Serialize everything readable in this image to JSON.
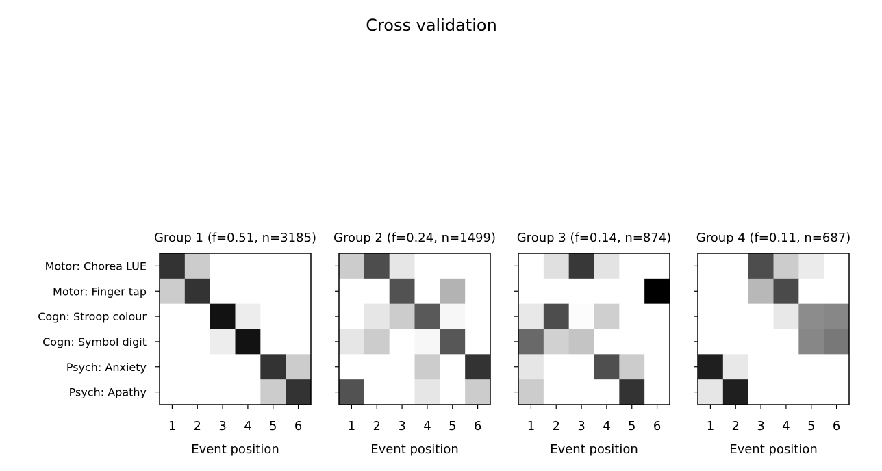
{
  "figure": {
    "title": "Cross validation"
  },
  "chart_data": {
    "type": "heatmap",
    "colormap": "greys",
    "value_range": [
      0,
      1
    ],
    "rows": [
      "Motor: Chorea LUE",
      "Motor: Finger tap",
      "Cogn: Stroop colour",
      "Cogn: Symbol digit",
      "Psych: Anxiety",
      "Psych: Apathy"
    ],
    "columns": [
      "1",
      "2",
      "3",
      "4",
      "5",
      "6"
    ],
    "xlabel": "Event position",
    "panels": [
      {
        "title": "Group 1 (f=0.51, n=3185)",
        "matrix": [
          [
            0.8,
            0.2,
            0.0,
            0.0,
            0.0,
            0.0
          ],
          [
            0.2,
            0.8,
            0.0,
            0.0,
            0.0,
            0.0
          ],
          [
            0.0,
            0.0,
            0.93,
            0.07,
            0.0,
            0.0
          ],
          [
            0.0,
            0.0,
            0.07,
            0.93,
            0.0,
            0.0
          ],
          [
            0.0,
            0.0,
            0.0,
            0.0,
            0.8,
            0.2
          ],
          [
            0.0,
            0.0,
            0.0,
            0.0,
            0.2,
            0.8
          ]
        ]
      },
      {
        "title": "Group 2 (f=0.24, n=1499)",
        "matrix": [
          [
            0.2,
            0.7,
            0.1,
            0.0,
            0.0,
            0.0
          ],
          [
            0.0,
            0.0,
            0.68,
            0.0,
            0.3,
            0.0
          ],
          [
            0.0,
            0.1,
            0.2,
            0.65,
            0.03,
            0.0
          ],
          [
            0.1,
            0.2,
            0.0,
            0.03,
            0.66,
            0.0
          ],
          [
            0.0,
            0.0,
            0.0,
            0.2,
            0.0,
            0.8
          ],
          [
            0.68,
            0.0,
            0.0,
            0.1,
            0.0,
            0.2
          ]
        ]
      },
      {
        "title": "Group 3 (f=0.14, n=874)",
        "matrix": [
          [
            0.0,
            0.12,
            0.78,
            0.11,
            0.0,
            0.0
          ],
          [
            0.0,
            0.0,
            0.0,
            0.0,
            0.0,
            1.0
          ],
          [
            0.09,
            0.7,
            0.01,
            0.19,
            0.0,
            0.0
          ],
          [
            0.59,
            0.18,
            0.23,
            0.0,
            0.0,
            0.0
          ],
          [
            0.1,
            0.0,
            0.0,
            0.69,
            0.2,
            0.0
          ],
          [
            0.2,
            0.0,
            0.0,
            0.0,
            0.8,
            0.0
          ]
        ]
      },
      {
        "title": "Group 4 (f=0.11, n=687)",
        "matrix": [
          [
            0.0,
            0.0,
            0.7,
            0.2,
            0.08,
            0.0
          ],
          [
            0.0,
            0.0,
            0.28,
            0.71,
            0.0,
            0.0
          ],
          [
            0.0,
            0.0,
            0.0,
            0.09,
            0.45,
            0.47
          ],
          [
            0.0,
            0.0,
            0.0,
            0.0,
            0.47,
            0.53
          ],
          [
            0.88,
            0.09,
            0.0,
            0.0,
            0.0,
            0.0
          ],
          [
            0.1,
            0.88,
            0.0,
            0.0,
            0.0,
            0.0
          ]
        ]
      }
    ]
  }
}
